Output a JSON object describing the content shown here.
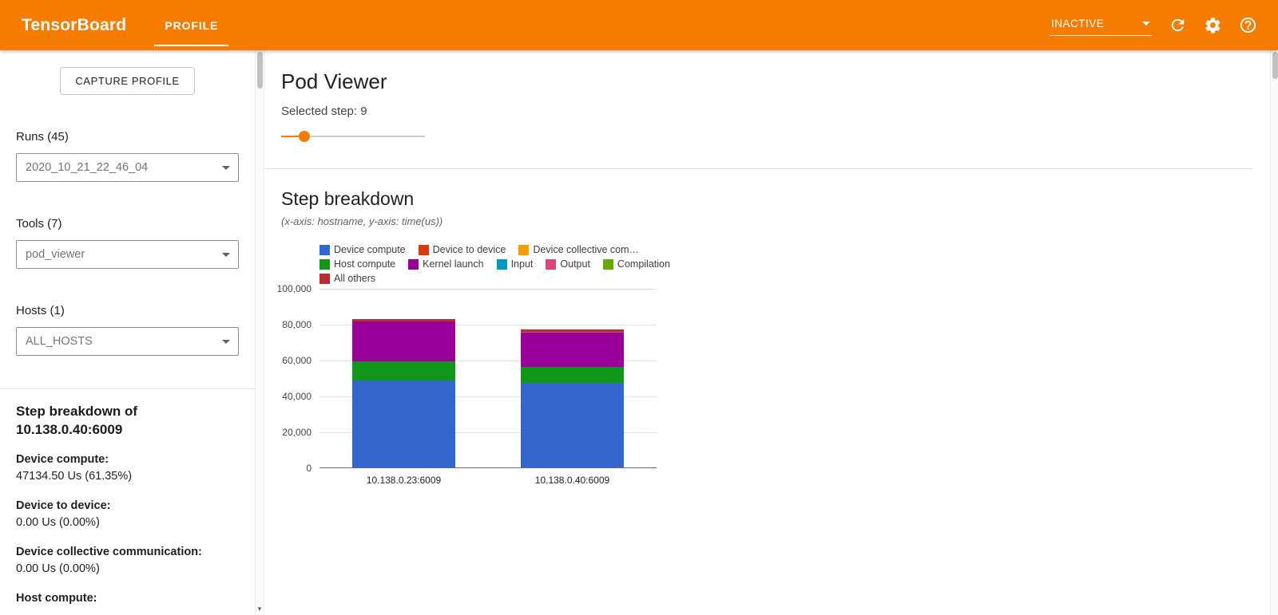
{
  "header": {
    "app_title": "TensorBoard",
    "tab": {
      "label": "PROFILE"
    },
    "status": {
      "value": "INACTIVE"
    }
  },
  "sidebar": {
    "capture_button_label": "CAPTURE PROFILE",
    "selectors": [
      {
        "label": "Runs (45)",
        "value": "2020_10_21_22_46_04"
      },
      {
        "label": "Tools (7)",
        "value": "pod_viewer"
      },
      {
        "label": "Hosts (1)",
        "value": "ALL_HOSTS"
      }
    ],
    "details": {
      "title_line1": "Step breakdown of",
      "title_line2": "10.138.0.40:6009",
      "metrics": [
        {
          "label": "Device compute:",
          "value": "47134.50 Us (61.35%)"
        },
        {
          "label": "Device to device:",
          "value": "0.00 Us (0.00%)"
        },
        {
          "label": "Device collective communication:",
          "value": "0.00 Us (0.00%)"
        },
        {
          "label": "Host compute:",
          "value": ""
        }
      ]
    }
  },
  "main": {
    "title": "Pod Viewer",
    "selected_step_label": "Selected step: 9",
    "selected_step": 9,
    "section_title": "Step breakdown",
    "axis_note": "(x-axis: hostname, y-axis: time(us))"
  },
  "chart_data": {
    "type": "bar",
    "stacked": true,
    "categories": [
      "10.138.0.23:6009",
      "10.138.0.40:6009"
    ],
    "series": [
      {
        "name": "Device compute",
        "legend_label": "Device compute",
        "color": "#3366cc",
        "values": [
          48600,
          47134.5
        ]
      },
      {
        "name": "Device to device",
        "legend_label": "Device to device",
        "color": "#dc3912",
        "values": [
          0,
          0
        ]
      },
      {
        "name": "Device collective communication",
        "legend_label": "Device collective com…",
        "color": "#ff9900",
        "values": [
          0,
          0
        ]
      },
      {
        "name": "Host compute",
        "legend_label": "Host compute",
        "color": "#109618",
        "values": [
          10300,
          8900
        ]
      },
      {
        "name": "Kernel launch",
        "legend_label": "Kernel launch",
        "color": "#990099",
        "values": [
          22400,
          19000
        ]
      },
      {
        "name": "Input",
        "legend_label": "Input",
        "color": "#0099c6",
        "values": [
          0,
          0
        ]
      },
      {
        "name": "Output",
        "legend_label": "Output",
        "color": "#dd4477",
        "values": [
          0,
          400
        ]
      },
      {
        "name": "Compilation",
        "legend_label": "Compilation",
        "color": "#66aa00",
        "values": [
          0,
          0
        ]
      },
      {
        "name": "All others",
        "legend_label": "All others",
        "color": "#b82e2e",
        "values": [
          1200,
          1390
        ]
      }
    ],
    "xlabel": "hostname",
    "ylabel": "time(us)",
    "ylim": [
      0,
      100000
    ],
    "yticks": [
      0,
      20000,
      40000,
      60000,
      80000,
      100000
    ],
    "ytick_labels": [
      "0",
      "20,000",
      "40,000",
      "60,000",
      "80,000",
      "100,000"
    ],
    "legend_position": "top",
    "grid": true
  }
}
